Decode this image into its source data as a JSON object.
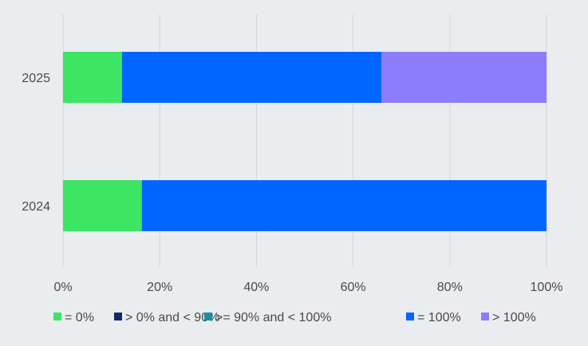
{
  "chart_data": {
    "type": "bar",
    "orientation": "horizontal",
    "stacked": "percent",
    "categories": [
      "2025",
      "2024"
    ],
    "series": [
      {
        "name": "= 0%",
        "color": "#3ce564",
        "values": [
          12.2,
          16.3
        ]
      },
      {
        "name": "> 0% and < 90%",
        "color": "#0b2c6b",
        "values": [
          0,
          0
        ]
      },
      {
        "name": ">= 90% and < 100%",
        "color": "#1a8fa0",
        "values": [
          0,
          0
        ]
      },
      {
        "name": "= 100%",
        "color": "#0066ff",
        "values": [
          53.7,
          83.7
        ]
      },
      {
        "name": "> 100%",
        "color": "#8b7dfb",
        "values": [
          34.1,
          0
        ]
      }
    ],
    "xlim": [
      0,
      100
    ],
    "xticks": [
      "0%",
      "20%",
      "40%",
      "60%",
      "80%",
      "100%"
    ],
    "grid": true,
    "legend_position": "bottom",
    "title": "",
    "xlabel": "",
    "ylabel": ""
  }
}
